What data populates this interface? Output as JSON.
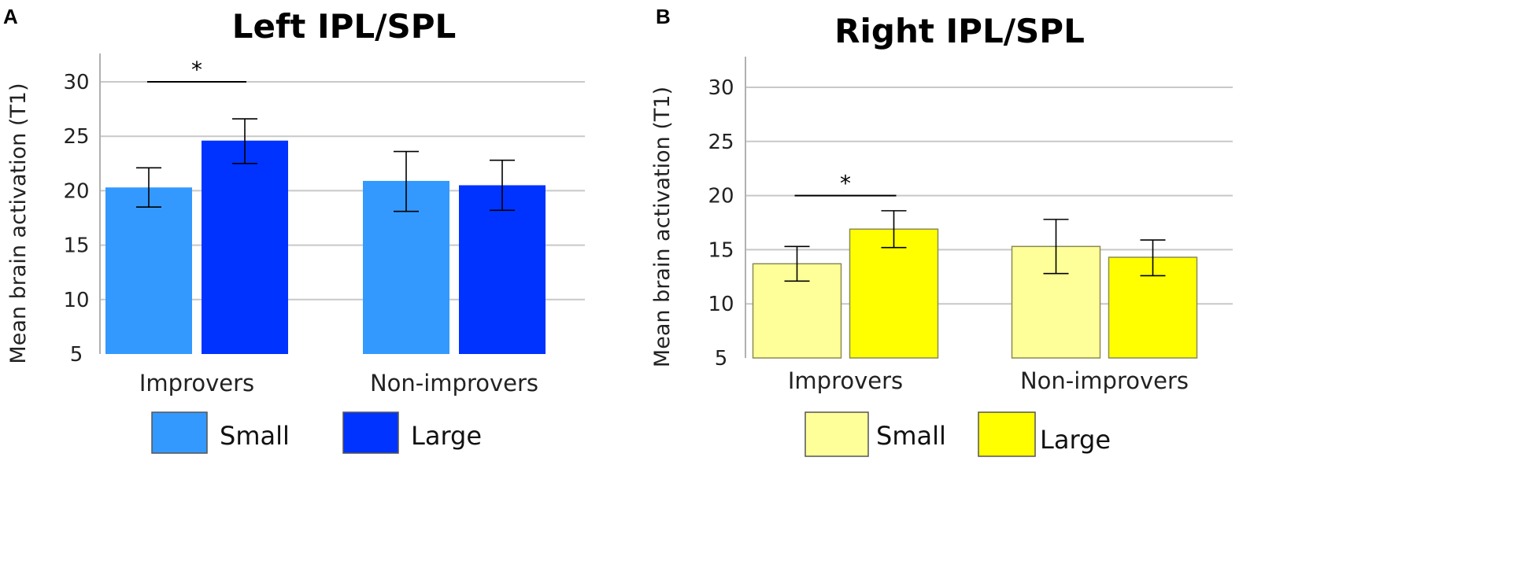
{
  "chart_data": [
    {
      "panel": "A",
      "type": "bar",
      "title": "Left IPL/SPL",
      "ylabel": "Mean brain activation (T1)",
      "xlabel": "",
      "ylim": [
        5,
        32
      ],
      "yticks": [
        5,
        10,
        15,
        20,
        25,
        30
      ],
      "grid": true,
      "categories": [
        "Improvers",
        "Non-improvers"
      ],
      "series": [
        {
          "name": "Small",
          "color": "#3399ff",
          "values": [
            20.3,
            20.9
          ],
          "err_low": [
            18.5,
            18.1
          ],
          "err_high": [
            22.1,
            23.6
          ]
        },
        {
          "name": "Large",
          "color": "#0033ff",
          "values": [
            24.6,
            20.5
          ],
          "err_low": [
            22.5,
            18.2
          ],
          "err_high": [
            26.6,
            22.8
          ]
        }
      ],
      "significance": [
        {
          "category_index": 0,
          "label": "*",
          "y": 30
        }
      ]
    },
    {
      "panel": "B",
      "type": "bar",
      "title": "Right IPL/SPL",
      "ylabel": "Mean brain activation (T1)",
      "xlabel": "",
      "ylim": [
        5,
        32
      ],
      "yticks": [
        5,
        10,
        15,
        20,
        25,
        30
      ],
      "grid": true,
      "categories": [
        "Improvers",
        "Non-improvers"
      ],
      "series": [
        {
          "name": "Small",
          "color": "#ffff99",
          "values": [
            13.7,
            15.3
          ],
          "err_low": [
            12.1,
            12.8
          ],
          "err_high": [
            15.3,
            17.8
          ]
        },
        {
          "name": "Large",
          "color": "#ffff00",
          "values": [
            16.9,
            14.3
          ],
          "err_low": [
            15.2,
            12.6
          ],
          "err_high": [
            18.6,
            15.9
          ]
        }
      ],
      "significance": [
        {
          "category_index": 0,
          "label": "*",
          "y": 20
        }
      ]
    }
  ]
}
